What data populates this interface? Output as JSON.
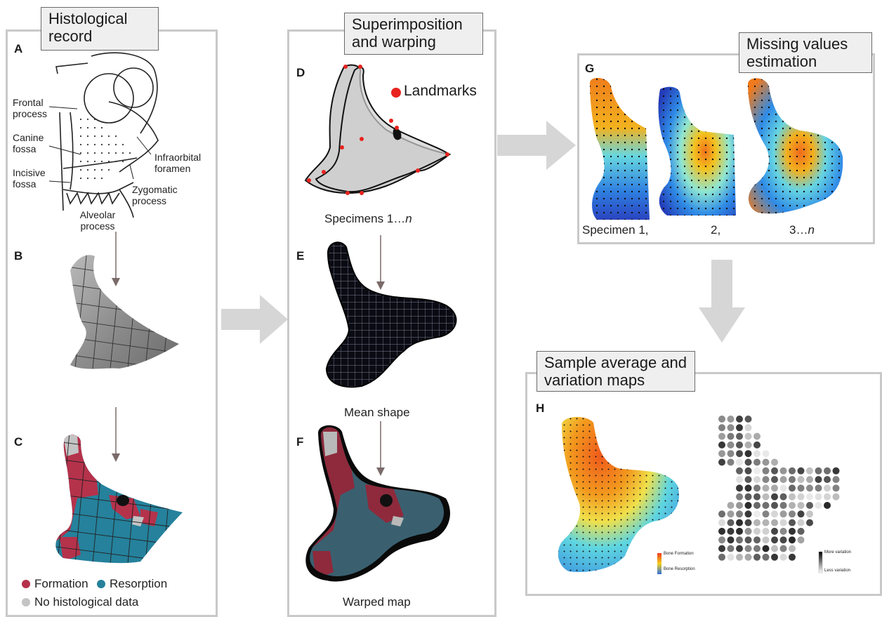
{
  "panels": {
    "histological_record": {
      "title": "Histological record",
      "a": {
        "letter": "A",
        "labels": {
          "frontal": "Frontal process",
          "canine": "Canine fossa",
          "incisive": "Incisive fossa",
          "infraorbital": "Infraorbital foramen",
          "zygomatic": "Zygomatic process",
          "alveolar": "Alveolar process"
        }
      },
      "b": {
        "letter": "B"
      },
      "c": {
        "letter": "C"
      },
      "legend": {
        "formation": "Formation",
        "resorption": "Resorption",
        "no_data": "No histological data"
      }
    },
    "superimposition": {
      "title": "Superimposition and warping",
      "d": {
        "letter": "D",
        "landmarks_label": "Landmarks",
        "caption_prefix": "Specimens 1…",
        "caption_n": "n"
      },
      "e": {
        "letter": "E",
        "caption": "Mean shape"
      },
      "f": {
        "letter": "F",
        "caption": "Warped map"
      }
    },
    "missing_values": {
      "title": "Missing values estimation",
      "g": {
        "letter": "G",
        "cap1": "Specimen 1,",
        "cap2": "2,",
        "cap3_prefix": "3…",
        "cap3_n": "n"
      }
    },
    "average_maps": {
      "title": "Sample average and variation maps",
      "h": {
        "letter": "H",
        "legend_avg": {
          "top": "Bone Formation",
          "bottom": "Bone Resorption"
        },
        "legend_var": {
          "top": "More variation",
          "bottom": "Less variation"
        }
      }
    }
  },
  "colors": {
    "formation": "#b5324b",
    "resorption": "#25819c",
    "no_data": "#c4c4c4",
    "landmark": "#e8231e",
    "arrow": "#d6d6d6",
    "panel_border": "#c9c9c9"
  }
}
